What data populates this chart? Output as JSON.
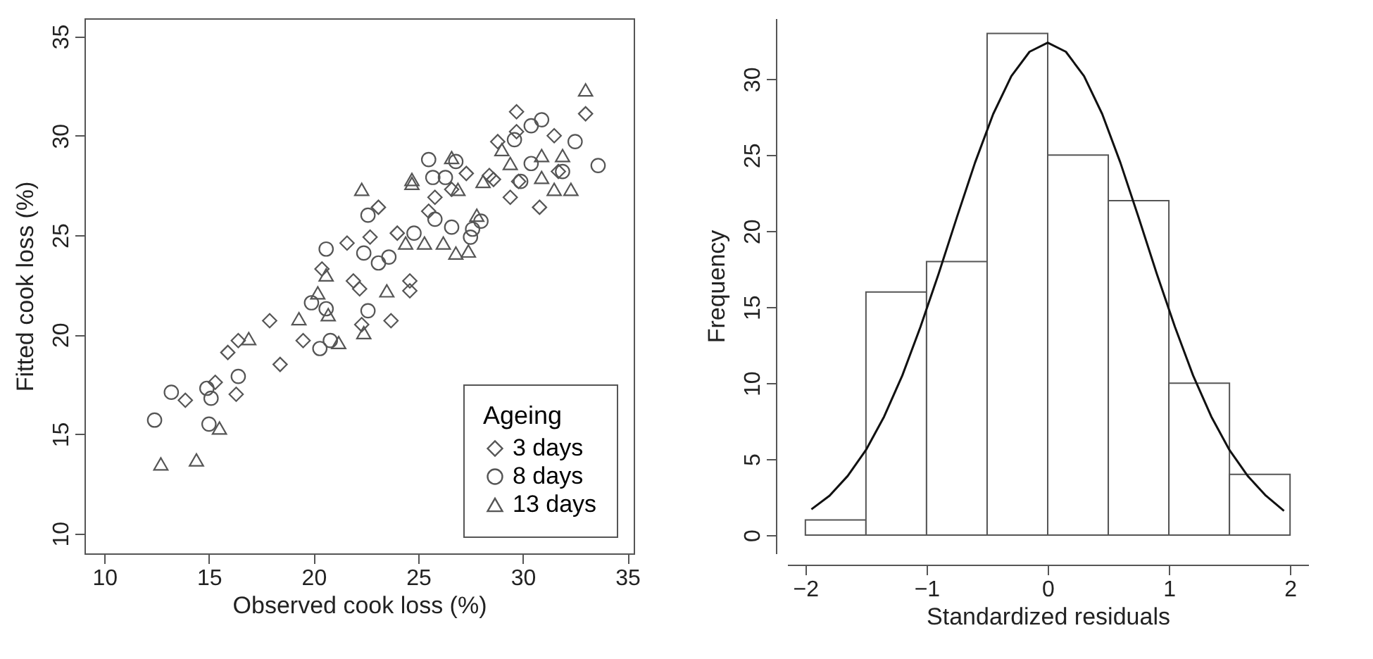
{
  "chart_data": [
    {
      "type": "scatter",
      "xlabel": "Observed cook loss (%)",
      "ylabel": "Fitted cook loss (%)",
      "legend_title": "Ageing",
      "legend": "bottom right",
      "grid": false,
      "xlim": [
        9.05,
        35.3
      ],
      "ylim": [
        9.0,
        35.9
      ],
      "xticks": [
        10,
        15,
        20,
        25,
        30,
        35
      ],
      "yticks": [
        10,
        15,
        20,
        25,
        30,
        35
      ],
      "series": [
        {
          "name": "3 days",
          "color": "#555555",
          "marker": "diamond",
          "x": [
            13.87,
            15.3,
            15.9,
            16.4,
            16.3,
            17.9,
            18.4,
            19.5,
            20.4,
            21.6,
            21.9,
            22.2,
            22.3,
            23.1,
            22.7,
            23.7,
            24.0,
            24.6,
            24.6,
            25.5,
            25.8,
            26.6,
            27.3,
            28.4,
            28.6,
            28.8,
            29.4,
            29.7,
            29.7,
            29.8,
            30.8,
            31.5,
            33.0,
            31.7
          ],
          "values": [
            16.7,
            17.6,
            19.1,
            19.7,
            17.0,
            20.7,
            18.5,
            19.7,
            23.3,
            24.6,
            22.7,
            22.3,
            20.5,
            26.4,
            24.9,
            20.7,
            25.1,
            22.7,
            22.2,
            26.2,
            26.9,
            27.3,
            28.1,
            28.0,
            27.8,
            29.7,
            26.9,
            31.2,
            30.2,
            27.7,
            26.4,
            30.0,
            31.1,
            28.2
          ]
        },
        {
          "name": "8 days",
          "color": "#555555",
          "marker": "circle",
          "x": [
            12.4,
            13.2,
            14.9,
            15.0,
            15.1,
            16.4,
            19.9,
            20.3,
            20.6,
            20.8,
            20.6,
            22.6,
            22.6,
            22.4,
            23.1,
            23.6,
            24.8,
            25.5,
            25.7,
            25.8,
            26.3,
            26.6,
            26.8,
            27.5,
            27.6,
            28.0,
            29.6,
            30.4,
            30.4,
            30.9,
            31.9,
            32.5,
            33.6,
            29.9
          ],
          "values": [
            15.7,
            17.1,
            17.3,
            15.5,
            16.8,
            17.9,
            21.6,
            19.3,
            24.3,
            19.7,
            21.3,
            21.2,
            26.0,
            24.1,
            23.6,
            23.9,
            25.1,
            28.8,
            27.9,
            25.8,
            27.9,
            25.4,
            28.7,
            24.9,
            25.3,
            25.7,
            29.8,
            30.5,
            28.6,
            30.8,
            28.2,
            29.7,
            28.5,
            27.7
          ]
        },
        {
          "name": "13 days",
          "color": "#555555",
          "marker": "triangle",
          "x": [
            12.7,
            14.4,
            15.5,
            16.9,
            19.3,
            20.2,
            20.6,
            20.7,
            21.2,
            22.3,
            22.4,
            23.5,
            24.4,
            24.7,
            24.7,
            25.3,
            26.2,
            26.6,
            26.8,
            27.4,
            26.9,
            27.8,
            28.1,
            29.0,
            29.4,
            30.9,
            30.9,
            31.5,
            31.9,
            32.3,
            33.0
          ],
          "values": [
            13.5,
            13.7,
            15.3,
            19.8,
            20.8,
            22.1,
            23.0,
            21.0,
            19.6,
            27.3,
            20.1,
            22.2,
            24.6,
            27.8,
            27.6,
            24.6,
            24.6,
            28.9,
            24.1,
            24.2,
            27.3,
            26.0,
            27.7,
            29.3,
            28.6,
            29.0,
            27.9,
            27.3,
            29.0,
            27.3,
            32.3
          ]
        }
      ]
    },
    {
      "type": "histogram",
      "xlabel": "Standardized residuals",
      "ylabel": "Frequency",
      "grid": false,
      "xlim": [
        -2.15,
        2.15
      ],
      "ylim": [
        -1.2,
        34.0
      ],
      "xticks": [
        -2,
        -1,
        0,
        1,
        2
      ],
      "yticks": [
        0,
        5,
        10,
        15,
        20,
        25,
        30
      ],
      "bins": [
        -2,
        -1.5,
        -1,
        -0.5,
        0,
        0.5,
        1,
        1.5,
        2
      ],
      "values": [
        1,
        16,
        18,
        33,
        25,
        22,
        10,
        4
      ],
      "color": "#555555",
      "series": [
        {
          "type": "line",
          "color": "#111111",
          "x": [
            -1.95,
            -1.8,
            -1.65,
            -1.5,
            -1.35,
            -1.2,
            -1.05,
            -0.9,
            -0.75,
            -0.6,
            -0.45,
            -0.3,
            -0.15,
            0,
            0.15,
            0.3,
            0.45,
            0.6,
            0.75,
            0.9,
            1.05,
            1.2,
            1.35,
            1.5,
            1.65,
            1.8,
            1.95
          ],
          "values": [
            1.7,
            2.6,
            3.9,
            5.6,
            7.8,
            10.5,
            13.7,
            17.2,
            20.9,
            24.5,
            27.7,
            30.2,
            31.8,
            32.4,
            31.8,
            30.2,
            27.7,
            24.5,
            20.9,
            17.2,
            13.7,
            10.5,
            7.8,
            5.6,
            3.9,
            2.6,
            1.6
          ]
        }
      ]
    }
  ]
}
